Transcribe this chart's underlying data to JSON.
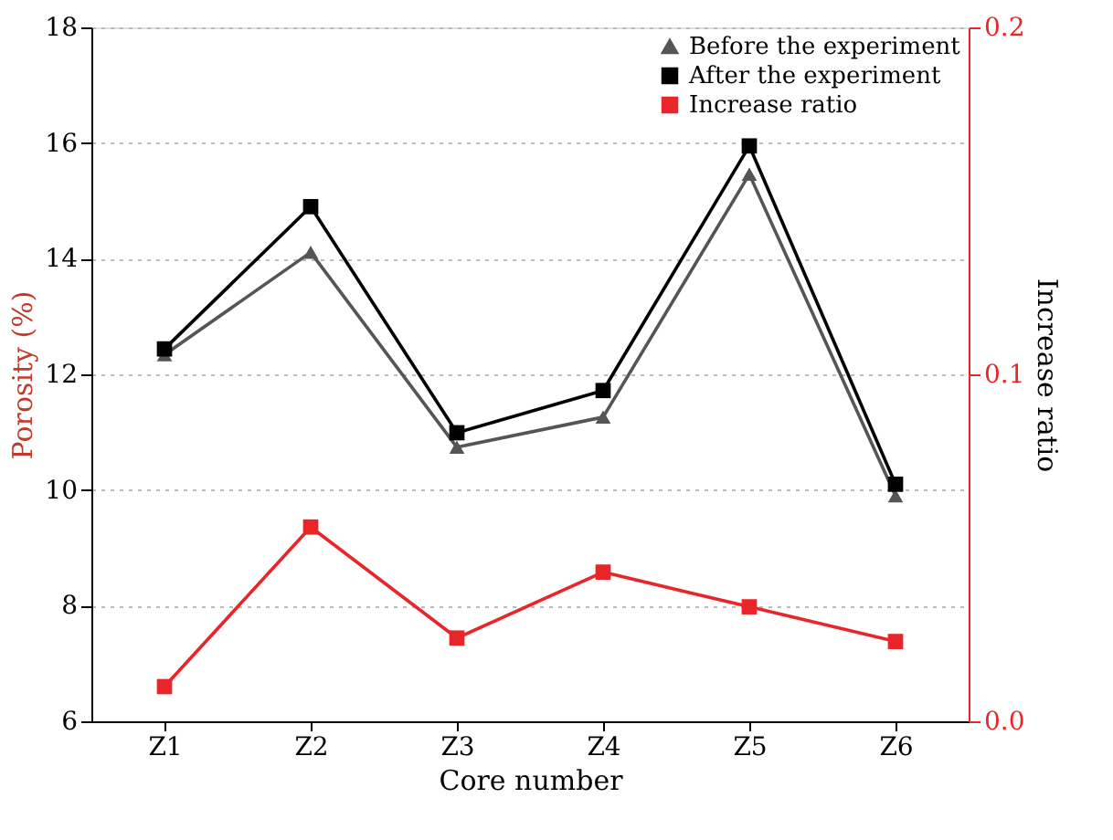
{
  "chart_data": {
    "type": "line",
    "xlabel": "Core number",
    "ylabel": "Porosity (%)",
    "y2label": "Increase ratio",
    "categories": [
      "Z1",
      "Z2",
      "Z3",
      "Z4",
      "Z5",
      "Z6"
    ],
    "series": [
      {
        "name": "Before the experiment",
        "color": "#555555",
        "marker": "triangle",
        "values": [
          12.34,
          14.11,
          10.74,
          11.26,
          15.46,
          9.9
        ]
      },
      {
        "name": "After the experiment",
        "color": "#000000",
        "marker": "square",
        "values": [
          12.44,
          14.9,
          10.99,
          11.72,
          15.95,
          10.1
        ]
      },
      {
        "name": "Increase ratio",
        "color": "#e8262a",
        "marker": "square",
        "axis": "y2",
        "values": [
          0.01,
          0.056,
          0.024,
          0.043,
          0.033,
          0.023
        ]
      }
    ],
    "ylim": [
      6,
      18
    ],
    "yticks": [
      6,
      8,
      10,
      12,
      14,
      16,
      18
    ],
    "y2lim": [
      0,
      0.2
    ],
    "y2ticks": [
      {
        "value": 0,
        "label": "0.0"
      },
      {
        "value": 0.1,
        "label": "0.1"
      },
      {
        "value": 0.2,
        "label": "0.2"
      }
    ],
    "grid": "y",
    "legend": "top right",
    "line_style": "solid"
  }
}
